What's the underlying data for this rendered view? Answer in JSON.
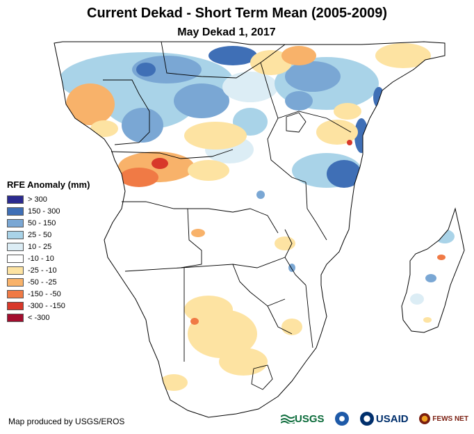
{
  "header": {
    "title": "Current Dekad - Short Term Mean (2005-2009)",
    "subtitle": "May Dekad 1, 2017"
  },
  "legend": {
    "title": "RFE Anomaly (mm)",
    "items": [
      {
        "label": "> 300",
        "color": "#2b2a8f"
      },
      {
        "label": "150 - 300",
        "color": "#3f6fb6"
      },
      {
        "label": "50 - 150",
        "color": "#7aa7d4"
      },
      {
        "label": "25 - 50",
        "color": "#a9d3e8"
      },
      {
        "label": "10 - 25",
        "color": "#dcedf5"
      },
      {
        "label": "-10 - 10",
        "color": "#ffffff"
      },
      {
        "label": "-25 - -10",
        "color": "#fde3a2"
      },
      {
        "label": "-50 - -25",
        "color": "#f8b26a"
      },
      {
        "label": "-150 - -50",
        "color": "#f07a45"
      },
      {
        "label": "-300 - -150",
        "color": "#d8382a"
      },
      {
        "label": "< -300",
        "color": "#a30d2e"
      }
    ]
  },
  "footer": {
    "credit": "Map produced by USGS/EROS",
    "logos": {
      "usgs": "USGS",
      "usaid": "USAID",
      "fews": "FEWS NET"
    }
  }
}
